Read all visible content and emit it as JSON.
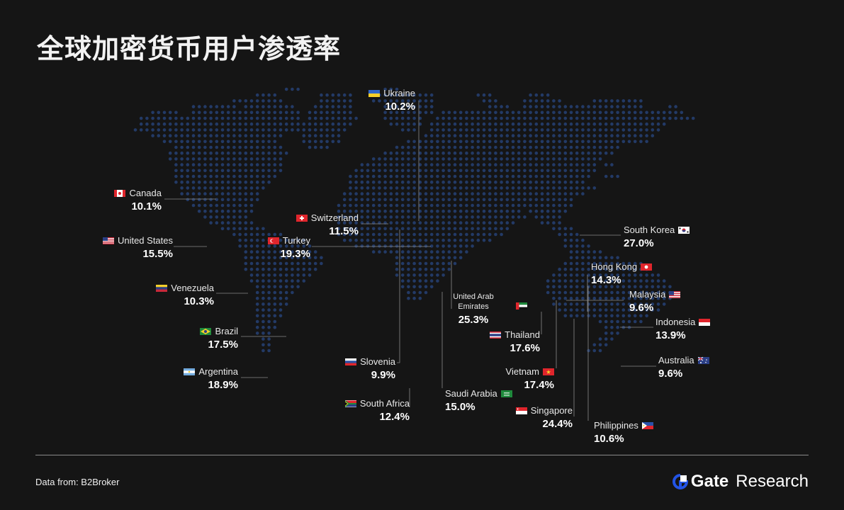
{
  "title": "全球加密货币用户渗透率",
  "footer": {
    "source": "Data from:  B2Broker",
    "brand_name": "Gate",
    "brand_suffix": "Research"
  },
  "colors": {
    "background": "#151515",
    "dots": "#233a66",
    "leader_lines": "#8a8a8a",
    "brand_accent": "#2354e6"
  },
  "countries": [
    {
      "key": "ukraine",
      "name": "Ukraine",
      "value": "10.2%",
      "flag": "ukraine-flag-icon"
    },
    {
      "key": "canada",
      "name": "Canada",
      "value": "10.1%",
      "flag": "canada-flag-icon"
    },
    {
      "key": "switzerland",
      "name": "Switzerland",
      "value": "11.5%",
      "flag": "switzerland-flag-icon"
    },
    {
      "key": "united-states",
      "name": "United States",
      "value": "15.5%",
      "flag": "united-states-flag-icon"
    },
    {
      "key": "turkey",
      "name": "Turkey",
      "value": "19.3%",
      "flag": "turkey-flag-icon"
    },
    {
      "key": "south-korea",
      "name": "South Korea",
      "value": "27.0%",
      "flag": "south-korea-flag-icon"
    },
    {
      "key": "hong-kong",
      "name": "Hong Kong",
      "value": "14.3%",
      "flag": "hong-kong-flag-icon"
    },
    {
      "key": "venezuela",
      "name": "Venezuela",
      "value": "10.3%",
      "flag": "venezuela-flag-icon"
    },
    {
      "key": "malaysia",
      "name": "Malaysia",
      "value": "9.6%",
      "flag": "malaysia-flag-icon"
    },
    {
      "key": "uae",
      "name": "United Arab Emirates",
      "value": "25.3%",
      "flag": "uae-flag-icon"
    },
    {
      "key": "brazil",
      "name": "Brazil",
      "value": "17.5%",
      "flag": "brazil-flag-icon"
    },
    {
      "key": "indonesia",
      "name": "Indonesia",
      "value": "13.9%",
      "flag": "indonesia-flag-icon"
    },
    {
      "key": "thailand",
      "name": "Thailand",
      "value": "17.6%",
      "flag": "thailand-flag-icon"
    },
    {
      "key": "slovenia",
      "name": "Slovenia",
      "value": "9.9%",
      "flag": "slovenia-flag-icon"
    },
    {
      "key": "argentina",
      "name": "Argentina",
      "value": "18.9%",
      "flag": "argentina-flag-icon"
    },
    {
      "key": "australia",
      "name": "Australia",
      "value": "9.6%",
      "flag": "australia-flag-icon"
    },
    {
      "key": "vietnam",
      "name": "Vietnam",
      "value": "17.4%",
      "flag": "vietnam-flag-icon"
    },
    {
      "key": "saudi-arabia",
      "name": "Saudi Arabia",
      "value": "15.0%",
      "flag": "saudi-arabia-flag-icon"
    },
    {
      "key": "south-africa",
      "name": "South Africa",
      "value": "12.4%",
      "flag": "south-africa-flag-icon"
    },
    {
      "key": "singapore",
      "name": "Singapore",
      "value": "24.4%",
      "flag": "singapore-flag-icon"
    },
    {
      "key": "philippines",
      "name": "Philippines",
      "value": "10.6%",
      "flag": "philippines-flag-icon"
    }
  ]
}
